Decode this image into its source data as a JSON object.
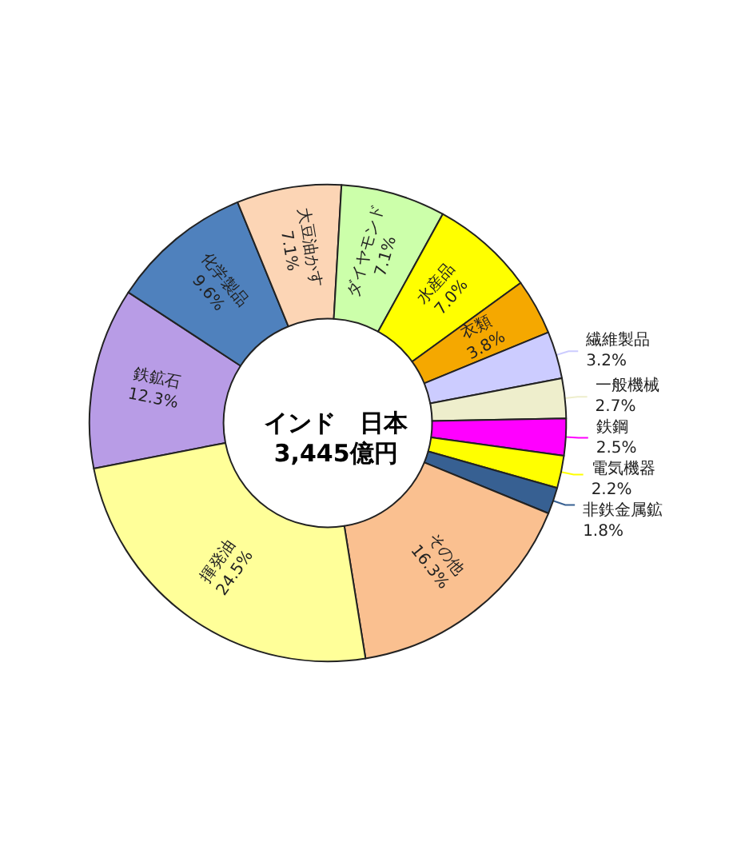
{
  "chart_data": {
    "type": "donut",
    "title": "インド　日本",
    "subtitle": "3,445億円",
    "categories": [
      "鉄鉱石",
      "化学製品",
      "大豆油かす",
      "ダイヤモンド",
      "水産品",
      "衣類",
      "繊維製品",
      "一般機械",
      "鉄鋼",
      "電気機器",
      "非鉄金属鉱",
      "その他",
      "揮発油"
    ],
    "values": [
      12.3,
      9.6,
      7.1,
      7.1,
      7.0,
      3.8,
      3.2,
      2.7,
      2.5,
      2.2,
      1.8,
      16.3,
      24.5
    ],
    "value_labels": [
      "12.3%",
      "9.6%",
      "7.1%",
      "7.1%",
      "7.0%",
      "3.8%",
      "3.2%",
      "2.7%",
      "2.5%",
      "2.2%",
      "1.8%",
      "16.3%",
      "24.5%"
    ],
    "colors": [
      "#b89ce6",
      "#4f81bd",
      "#fcd5b5",
      "#ccffaa",
      "#ffff00",
      "#f5a800",
      "#ccccff",
      "#eeeecc",
      "#ff00ff",
      "#ffff00",
      "#376092",
      "#fac090",
      "#ffff99"
    ],
    "legend": false
  }
}
